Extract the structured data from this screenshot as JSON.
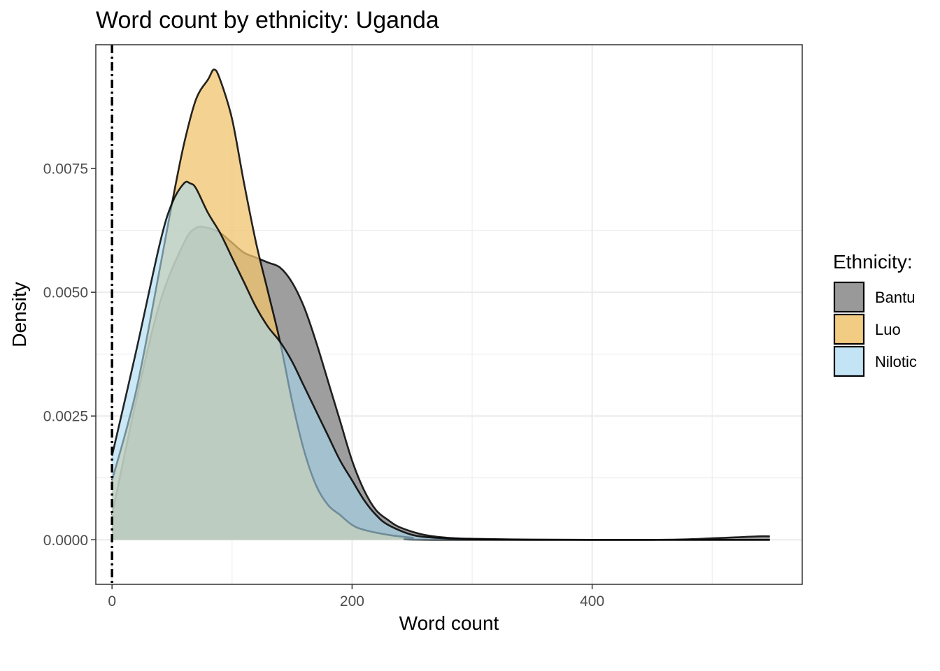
{
  "chart_data": {
    "type": "area",
    "title": "Word count by ethnicity: Uganda",
    "xlabel": "Word count",
    "ylabel": "Density",
    "xlim": [
      -13.5,
      575
    ],
    "ylim": [
      -0.0009,
      0.01
    ],
    "x_ticks": [
      0,
      200,
      400
    ],
    "x_tick_labels": [
      "0",
      "200",
      "400"
    ],
    "y_ticks": [
      0,
      0.0025,
      0.005,
      0.0075
    ],
    "y_tick_labels": [
      "0.0000",
      "0.0025",
      "0.0050",
      "0.0075"
    ],
    "grid": true,
    "reference_line": {
      "x": 0,
      "style": "dot-dash"
    },
    "legend": {
      "title": "Ethnicity:",
      "position": "right"
    },
    "series": [
      {
        "name": "Bantu",
        "color": "#999999",
        "fill_opacity": 0.95,
        "x": [
          0,
          20,
          40,
          60,
          70,
          80,
          90,
          100,
          110,
          120,
          130,
          140,
          150,
          160,
          170,
          180,
          190,
          200,
          210,
          220,
          230,
          240,
          260,
          280,
          300,
          350,
          400,
          450,
          480,
          500,
          520,
          540,
          548
        ],
        "y": [
          0.0005,
          0.0028,
          0.0048,
          0.006,
          0.0063,
          0.0063,
          0.0062,
          0.006,
          0.0058,
          0.0057,
          0.0056,
          0.0055,
          0.0052,
          0.0047,
          0.004,
          0.0032,
          0.0024,
          0.0016,
          0.001,
          0.0006,
          0.0004,
          0.00025,
          0.0001,
          4e-05,
          2e-05,
          5e-06,
          0.0,
          0.0,
          1e-05,
          3e-05,
          5e-05,
          7e-05,
          7e-05
        ]
      },
      {
        "name": "Luo",
        "color": "#f0c36d",
        "fill_opacity": 0.75,
        "x": [
          0,
          20,
          40,
          50,
          60,
          70,
          80,
          85,
          90,
          100,
          110,
          120,
          130,
          140,
          150,
          160,
          170,
          180,
          190,
          200,
          210,
          230,
          250,
          270,
          548
        ],
        "y": [
          0.0012,
          0.003,
          0.0055,
          0.0068,
          0.008,
          0.0089,
          0.0093,
          0.0095,
          0.0093,
          0.0085,
          0.0072,
          0.006,
          0.005,
          0.004,
          0.0028,
          0.0018,
          0.0011,
          0.0007,
          0.0005,
          0.0003,
          0.0002,
          0.0001,
          4e-05,
          0.0,
          0.0
        ]
      },
      {
        "name": "Nilotic",
        "color": "#a8d8f0",
        "fill_opacity": 0.6,
        "x": [
          0,
          20,
          40,
          50,
          60,
          65,
          70,
          80,
          90,
          100,
          110,
          120,
          130,
          140,
          150,
          160,
          170,
          180,
          190,
          200,
          210,
          220,
          230,
          250,
          270,
          300,
          350,
          548
        ],
        "y": [
          0.0017,
          0.0038,
          0.006,
          0.0068,
          0.0072,
          0.0072,
          0.0071,
          0.0066,
          0.0062,
          0.0057,
          0.0052,
          0.0047,
          0.0043,
          0.004,
          0.0036,
          0.0031,
          0.0026,
          0.0021,
          0.0016,
          0.0012,
          0.0008,
          0.0005,
          0.0003,
          0.0001,
          4e-05,
          1e-05,
          0.0,
          0.0
        ]
      }
    ]
  }
}
